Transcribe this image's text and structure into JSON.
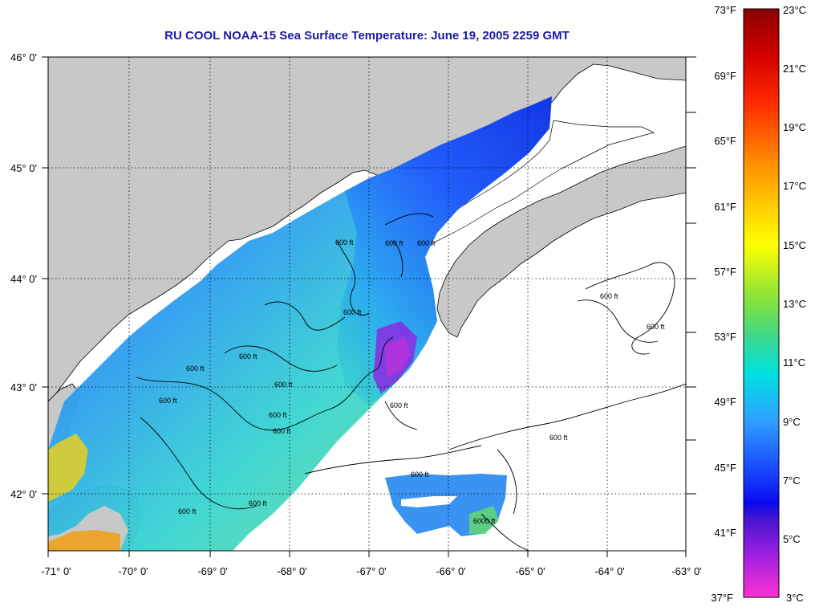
{
  "title": "RU COOL  NOAA-15  Sea Surface Temperature:  June 19, 2005 2259 GMT",
  "map": {
    "lat_labels": [
      "46° 0'",
      "45° 0'",
      "44° 0'",
      "43° 0'",
      "42° 0'"
    ],
    "lon_labels": [
      "-71° 0'",
      "-70° 0'",
      "-69° 0'",
      "-68° 0'",
      "-67° 0'",
      "-66° 0'",
      "-65° 0'",
      "-64° 0'",
      "-63° 0'"
    ],
    "contour_labels": [
      "600 ft",
      "600 ft",
      "600 ft",
      "600 ft",
      "600 ft",
      "600 ft",
      "600 ft",
      "600 ft",
      "600 ft",
      "600 ft",
      "600 ft",
      "600 ft",
      "600 ft",
      "600 ft",
      "6000 ft",
      "600 ft",
      "600 ft",
      "600 ft"
    ],
    "colors": {
      "land": "#c8c8c8",
      "grid": "#000000"
    }
  },
  "colorbar": {
    "fahrenheit_labels": [
      "73°F",
      "69°F",
      "65°F",
      "61°F",
      "57°F",
      "53°F",
      "49°F",
      "45°F",
      "41°F",
      "37°F"
    ],
    "celsius_labels": [
      "23°C",
      "21°C",
      "19°C",
      "17°C",
      "15°C",
      "13°C",
      "11°C",
      "9°C",
      "7°C",
      "5°C",
      "3°C"
    ]
  }
}
